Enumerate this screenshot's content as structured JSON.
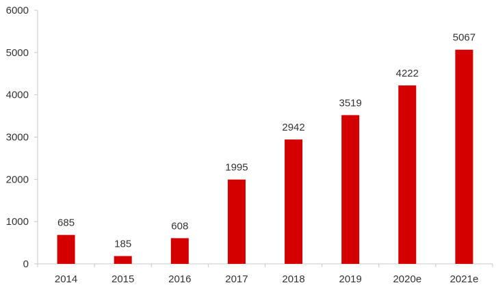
{
  "chart_data": {
    "type": "bar",
    "categories": [
      "2014",
      "2015",
      "2016",
      "2017",
      "2018",
      "2019",
      "2020e",
      "2021e"
    ],
    "values": [
      685,
      185,
      608,
      1995,
      2942,
      3519,
      4222,
      5067
    ],
    "data_labels": [
      "685",
      "185",
      "608",
      "1995",
      "2942",
      "3519",
      "4222",
      "5067"
    ],
    "title": "",
    "xlabel": "",
    "ylabel": "",
    "ylim": [
      0,
      6000
    ],
    "yticks": [
      0,
      1000,
      2000,
      3000,
      4000,
      5000,
      6000
    ],
    "ytick_labels": [
      "0",
      "1000",
      "2000",
      "3000",
      "4000",
      "5000",
      "6000"
    ],
    "grid": false,
    "legend": "none",
    "bar_color": "#d40000"
  }
}
